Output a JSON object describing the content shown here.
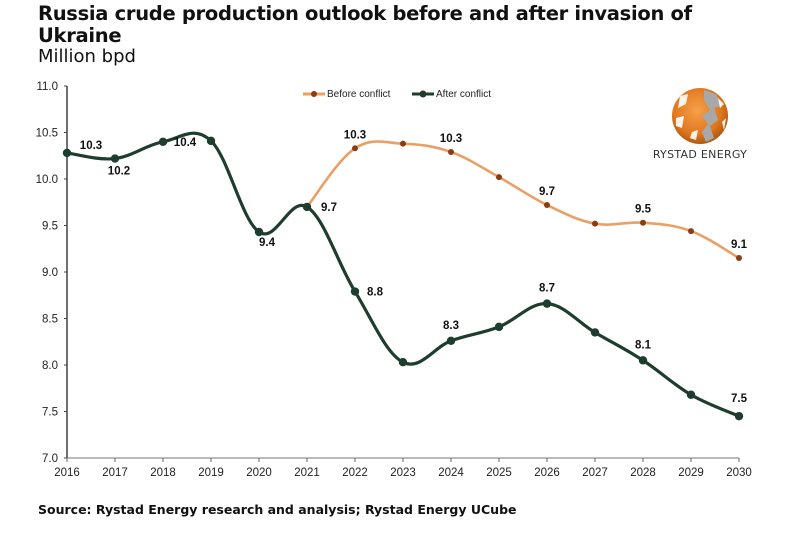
{
  "header": {
    "title": "Russia crude production outlook before and after invasion of Ukraine",
    "subtitle": "Million bpd"
  },
  "footer": {
    "source": "Source: Rystad Energy research and analysis;  Rystad Energy UCube"
  },
  "logo": {
    "text": "RYSTAD ENERGY",
    "icon": "globe-icon"
  },
  "colors": {
    "before": "#e8a066",
    "before_marker": "#8a3c14",
    "after": "#1e3d2e",
    "axis": "#444444"
  },
  "chart_data": {
    "type": "line",
    "title": "Russia crude production outlook before and after invasion of Ukraine",
    "ylabel": "Million bpd",
    "xlabel": "",
    "ylim": [
      7.0,
      11.0
    ],
    "yticks": [
      "7.0",
      "7.5",
      "8.0",
      "8.5",
      "9.0",
      "9.5",
      "10.0",
      "10.5",
      "11.0"
    ],
    "x": [
      "2016",
      "2017",
      "2018",
      "2019",
      "2020",
      "2021",
      "2022",
      "2023",
      "2024",
      "2025",
      "2026",
      "2027",
      "2028",
      "2029",
      "2030"
    ],
    "grid": false,
    "legend_position": "top-center",
    "series": [
      {
        "name": "Before conflict",
        "start_index": 5,
        "values": [
          9.7,
          10.33,
          10.38,
          10.29,
          10.02,
          9.72,
          9.52,
          9.53,
          9.44,
          9.15
        ],
        "labels": [
          {
            "index": 6,
            "text": "10.3"
          },
          {
            "index": 8,
            "text": "10.3"
          },
          {
            "index": 10,
            "text": "9.7"
          },
          {
            "index": 12,
            "text": "9.5"
          },
          {
            "index": 14,
            "text": "9.1"
          }
        ]
      },
      {
        "name": "After conflict",
        "start_index": 0,
        "values": [
          10.28,
          10.22,
          10.4,
          10.41,
          9.43,
          9.7,
          8.79,
          8.03,
          8.26,
          8.41,
          8.66,
          8.35,
          8.05,
          7.68,
          7.45
        ],
        "labels": [
          {
            "index": 0,
            "text": "10.3"
          },
          {
            "index": 1,
            "text": "10.2"
          },
          {
            "index": 2,
            "text": "10.4"
          },
          {
            "index": 4,
            "text": "9.4"
          },
          {
            "index": 5,
            "text": "9.7"
          },
          {
            "index": 6,
            "text": "8.8"
          },
          {
            "index": 8,
            "text": "8.3"
          },
          {
            "index": 10,
            "text": "8.7"
          },
          {
            "index": 12,
            "text": "8.1"
          },
          {
            "index": 14,
            "text": "7.5"
          }
        ]
      }
    ]
  }
}
